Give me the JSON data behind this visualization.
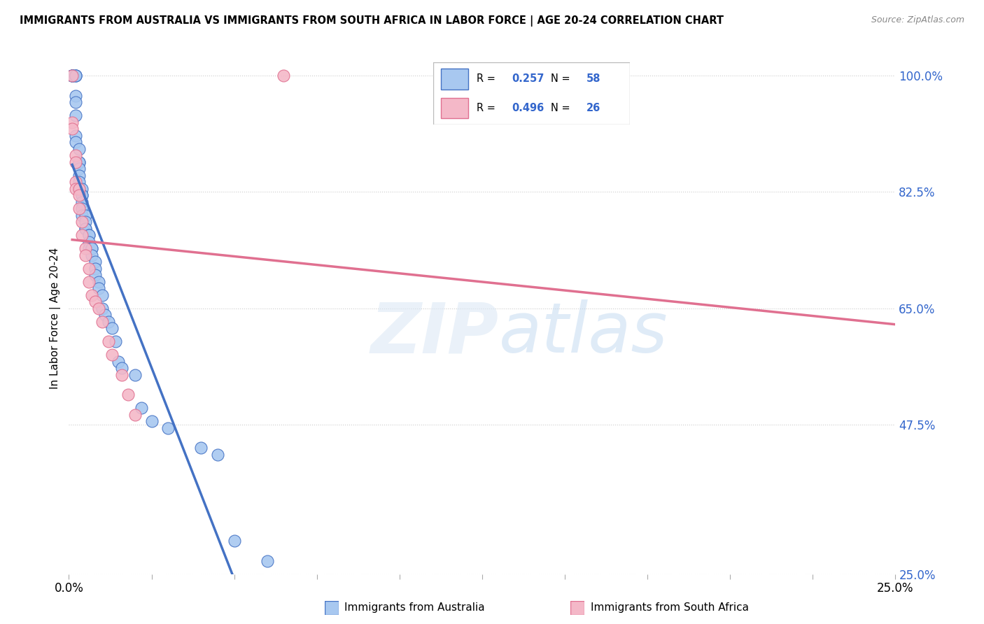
{
  "title": "IMMIGRANTS FROM AUSTRALIA VS IMMIGRANTS FROM SOUTH AFRICA IN LABOR FORCE | AGE 20-24 CORRELATION CHART",
  "source": "Source: ZipAtlas.com",
  "ylabel": "In Labor Force | Age 20-24",
  "R_australia": 0.257,
  "N_australia": 58,
  "R_southafrica": 0.496,
  "N_southafrica": 26,
  "color_australia": "#a8c8f0",
  "color_southafrica": "#f4b8c8",
  "line_color_australia": "#4472c4",
  "line_color_southafrica": "#e07090",
  "ytick_labels": [
    "25.0%",
    "47.5%",
    "65.0%",
    "82.5%",
    "100.0%"
  ],
  "ytick_values": [
    0.25,
    0.475,
    0.65,
    0.825,
    1.0
  ],
  "australia_x": [
    0.001,
    0.001,
    0.001,
    0.001,
    0.001,
    0.002,
    0.002,
    0.002,
    0.002,
    0.002,
    0.002,
    0.002,
    0.002,
    0.003,
    0.003,
    0.003,
    0.003,
    0.003,
    0.003,
    0.003,
    0.004,
    0.004,
    0.004,
    0.004,
    0.004,
    0.004,
    0.005,
    0.005,
    0.005,
    0.005,
    0.006,
    0.006,
    0.006,
    0.006,
    0.007,
    0.007,
    0.007,
    0.008,
    0.008,
    0.008,
    0.009,
    0.009,
    0.01,
    0.01,
    0.011,
    0.012,
    0.013,
    0.014,
    0.015,
    0.016,
    0.02,
    0.022,
    0.025,
    0.03,
    0.04,
    0.045,
    0.05,
    0.06
  ],
  "australia_y": [
    1.0,
    1.0,
    1.0,
    1.0,
    1.0,
    1.0,
    1.0,
    1.0,
    0.97,
    0.96,
    0.94,
    0.91,
    0.9,
    0.89,
    0.87,
    0.87,
    0.86,
    0.85,
    0.84,
    0.83,
    0.83,
    0.82,
    0.82,
    0.81,
    0.8,
    0.79,
    0.79,
    0.78,
    0.77,
    0.77,
    0.76,
    0.76,
    0.75,
    0.74,
    0.74,
    0.74,
    0.73,
    0.72,
    0.71,
    0.7,
    0.69,
    0.68,
    0.67,
    0.65,
    0.64,
    0.63,
    0.62,
    0.6,
    0.57,
    0.56,
    0.55,
    0.5,
    0.48,
    0.47,
    0.44,
    0.43,
    0.3,
    0.27
  ],
  "southafrica_x": [
    0.001,
    0.001,
    0.001,
    0.002,
    0.002,
    0.002,
    0.002,
    0.003,
    0.003,
    0.003,
    0.004,
    0.004,
    0.005,
    0.005,
    0.006,
    0.006,
    0.007,
    0.008,
    0.009,
    0.01,
    0.012,
    0.013,
    0.016,
    0.018,
    0.02,
    0.065
  ],
  "southafrica_y": [
    1.0,
    0.93,
    0.92,
    0.88,
    0.87,
    0.84,
    0.83,
    0.83,
    0.82,
    0.8,
    0.78,
    0.76,
    0.74,
    0.73,
    0.71,
    0.69,
    0.67,
    0.66,
    0.65,
    0.63,
    0.6,
    0.58,
    0.55,
    0.52,
    0.49,
    1.0
  ]
}
